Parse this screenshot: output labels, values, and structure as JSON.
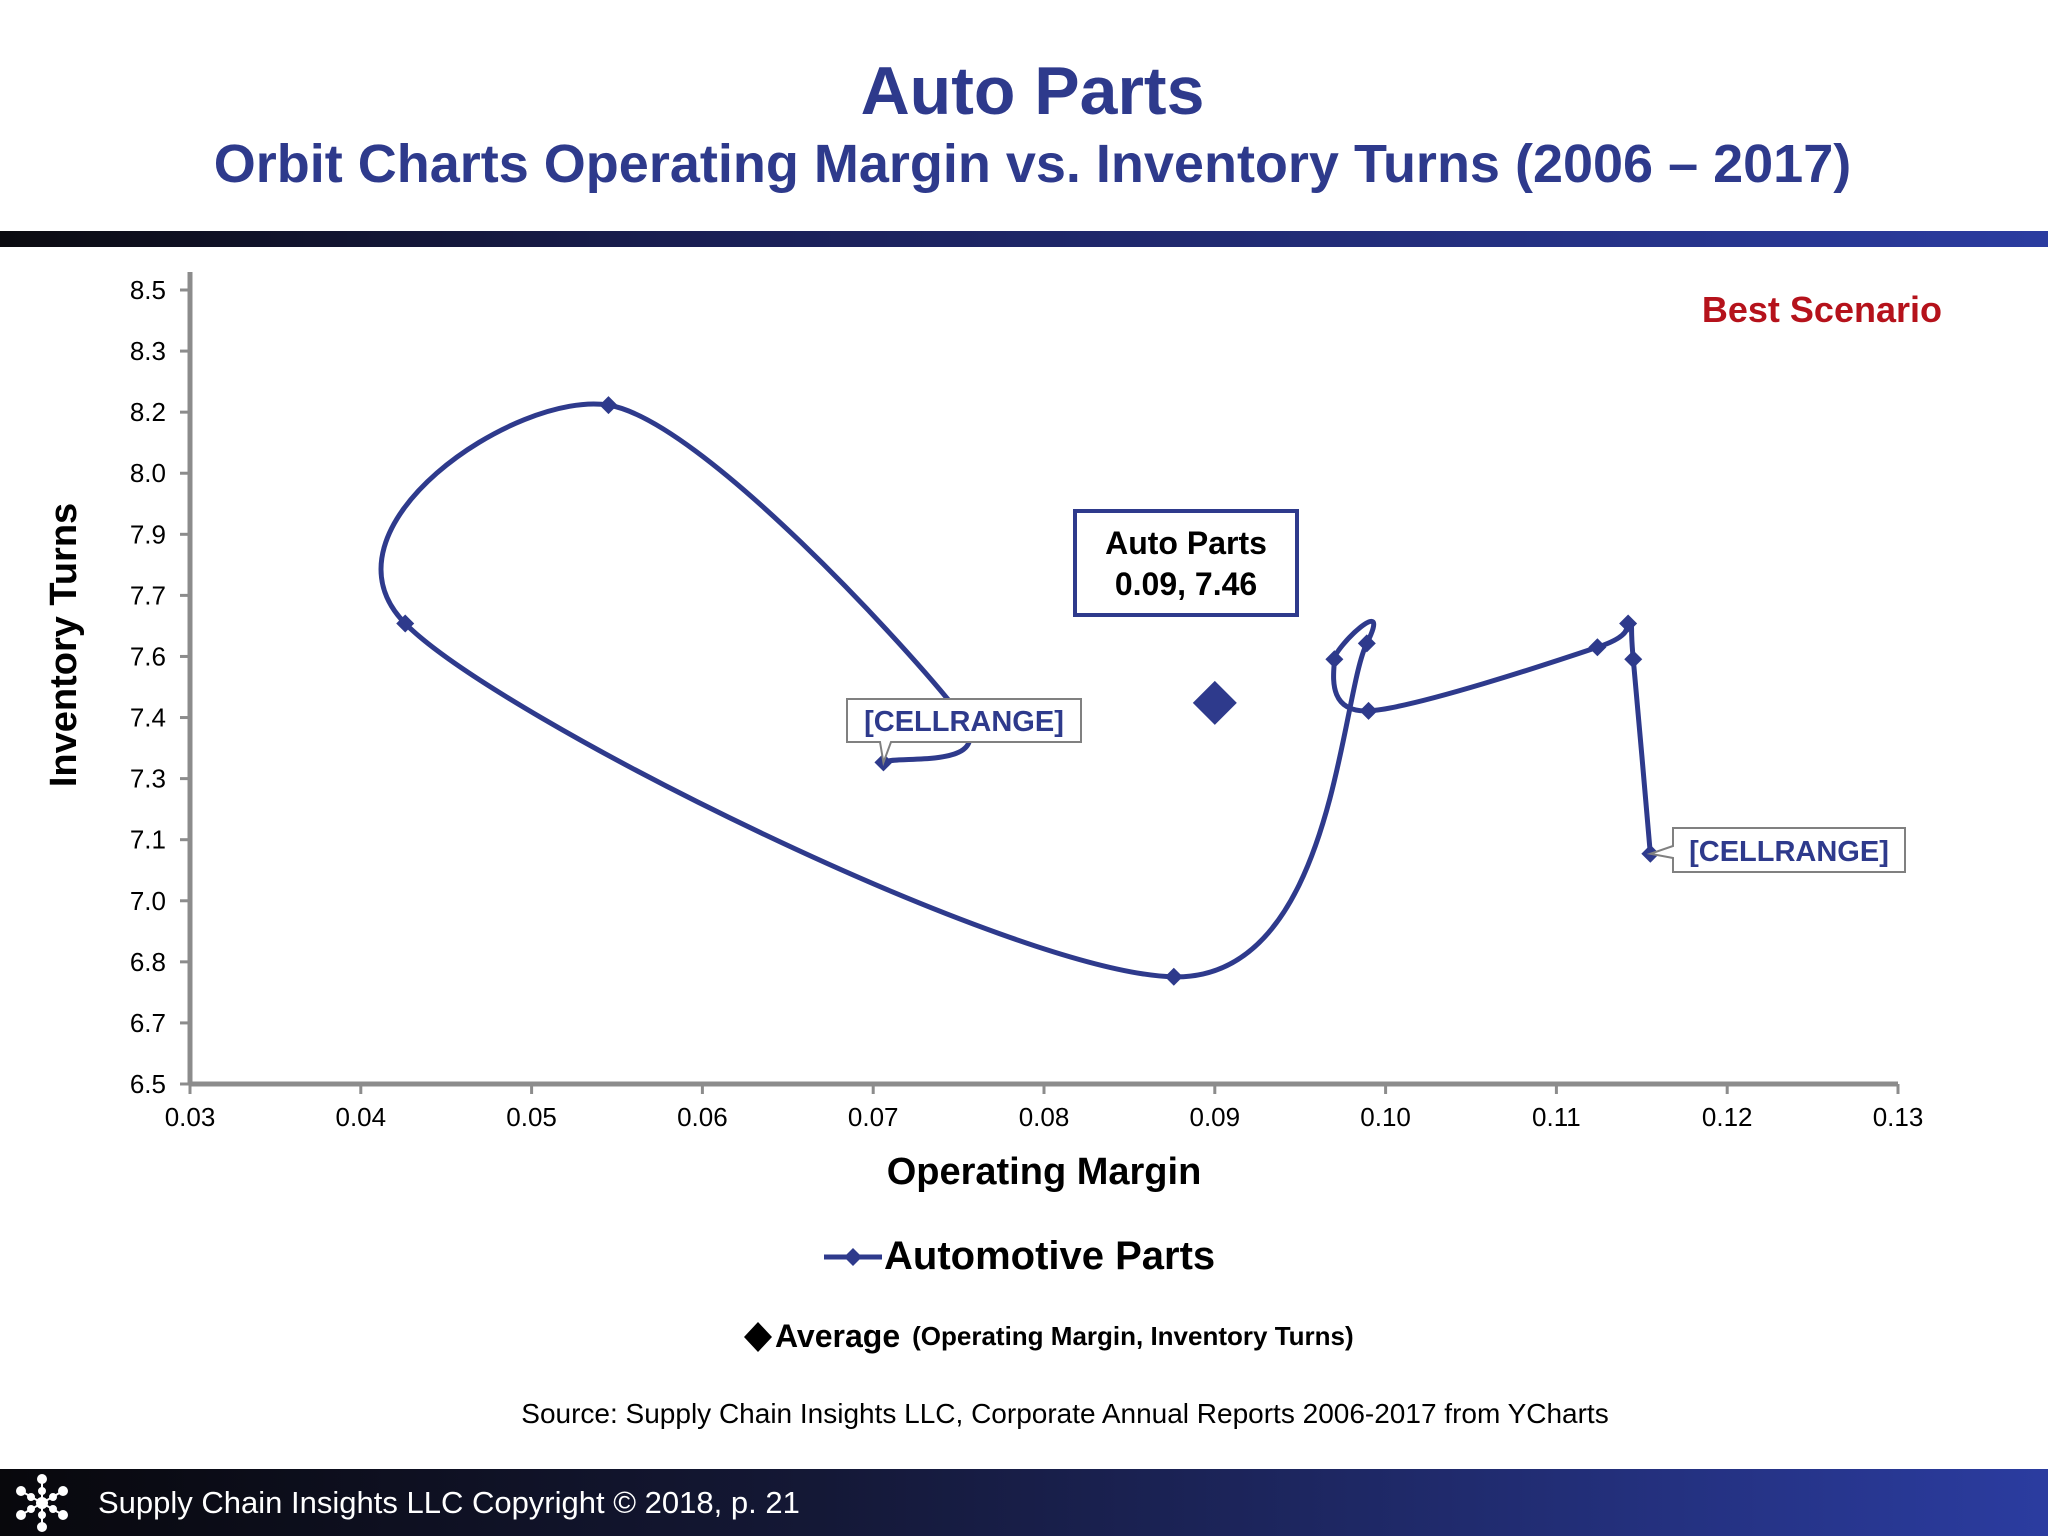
{
  "header": {
    "title": "Auto Parts",
    "subtitle": "Orbit Charts Operating Margin vs. Inventory Turns (2006 – 2017)"
  },
  "chart_data": {
    "type": "scatter",
    "xlabel": "Operating Margin",
    "ylabel": "Inventory Turns",
    "xlim": [
      0.03,
      0.13
    ],
    "ylim": [
      6.5,
      8.5
    ],
    "x_ticks": [
      "0.03",
      "0.04",
      "0.05",
      "0.06",
      "0.07",
      "0.08",
      "0.09",
      "0.10",
      "0.11",
      "0.12",
      "0.13"
    ],
    "y_ticks": [
      "6.5",
      "6.7",
      "6.8",
      "7.0",
      "7.1",
      "7.3",
      "7.4",
      "7.6",
      "7.7",
      "7.9",
      "8.0",
      "8.2",
      "8.3",
      "8.5"
    ],
    "grid": false,
    "series": [
      {
        "name": "Automotive Parts",
        "color": "#2e3a8c",
        "smooth": true,
        "points": [
          {
            "x": 0.0706,
            "y": 7.31
          },
          {
            "x": 0.075,
            "y": 7.435
          },
          {
            "x": 0.0545,
            "y": 8.21
          },
          {
            "x": 0.0426,
            "y": 7.66
          },
          {
            "x": 0.0876,
            "y": 6.77
          },
          {
            "x": 0.0989,
            "y": 7.61
          },
          {
            "x": 0.097,
            "y": 7.57
          },
          {
            "x": 0.099,
            "y": 7.44
          },
          {
            "x": 0.1124,
            "y": 7.6
          },
          {
            "x": 0.1142,
            "y": 7.66
          },
          {
            "x": 0.1145,
            "y": 7.57
          },
          {
            "x": 0.1155,
            "y": 7.08
          }
        ]
      }
    ],
    "average": {
      "name": "Average",
      "x": 0.09,
      "y": 7.46,
      "label_lines": [
        "Auto Parts",
        "0.09, 7.46"
      ]
    },
    "data_labels": [
      "[CELLRANGE]",
      "[CELLRANGE]"
    ],
    "annotation": "Best Scenario",
    "annotation_color": "#b5121b"
  },
  "legend": {
    "series_label": "Automotive Parts",
    "average_label": "Average",
    "average_sub": "(Operating Margin, Inventory Turns)"
  },
  "source": "Source:  Supply Chain Insights LLC, Corporate Annual Reports 2006-2017 from YCharts",
  "footer": {
    "text": "Supply Chain Insights LLC Copyright © 2018, p. 21",
    "logo_icon": "snowflake-network-icon"
  }
}
